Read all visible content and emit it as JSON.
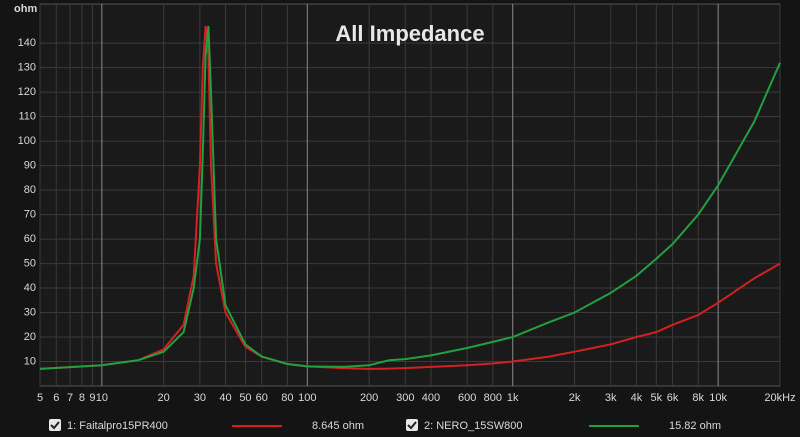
{
  "chart_data": {
    "type": "line",
    "title": "All Impedance",
    "y_label": "ohm",
    "x_scale": "log",
    "grid": true,
    "xlim": [
      5,
      20000
    ],
    "ylim": [
      0,
      156
    ],
    "xticks": [
      5,
      6,
      7,
      8,
      9,
      10,
      20,
      30,
      40,
      50,
      60,
      80,
      100,
      200,
      300,
      400,
      600,
      800,
      {
        "value": 1000,
        "label": "1k"
      },
      {
        "value": 2000,
        "label": "2k"
      },
      {
        "value": 3000,
        "label": "3k"
      },
      {
        "value": 4000,
        "label": "4k"
      },
      {
        "value": 5000,
        "label": "5k"
      },
      {
        "value": 6000,
        "label": "6k"
      },
      {
        "value": 8000,
        "label": "8k"
      },
      {
        "value": 10000,
        "label": "10k"
      },
      {
        "value": 20000,
        "label": "20kHz"
      }
    ],
    "yticks": [
      10,
      20,
      30,
      40,
      50,
      60,
      70,
      80,
      90,
      100,
      110,
      120,
      130,
      140
    ],
    "x": [
      5,
      10,
      15,
      20,
      25,
      28,
      30,
      31,
      32,
      33,
      34,
      36,
      40,
      50,
      60,
      80,
      100,
      150,
      200,
      250,
      300,
      400,
      600,
      800,
      1000,
      1500,
      2000,
      3000,
      4000,
      5000,
      6000,
      8000,
      10000,
      15000,
      20000
    ],
    "series": [
      {
        "name": "1: Faitalpro15PR400",
        "color": "#d42020",
        "readout": "8.645 ohm",
        "values": [
          7,
          8.5,
          10.5,
          15,
          25,
          45,
          90,
          130,
          147,
          135,
          90,
          50,
          30,
          16,
          12,
          9,
          8,
          7.3,
          7,
          7.1,
          7.3,
          7.8,
          8.5,
          9.2,
          10,
          12,
          14,
          17,
          20,
          22,
          25,
          29,
          34,
          44,
          50
        ]
      },
      {
        "name": "2: NERO_15SW800",
        "color": "#22a040",
        "readout": "15.82 ohm",
        "values": [
          7,
          8.5,
          10.5,
          14,
          22,
          40,
          60,
          95,
          135,
          147,
          120,
          60,
          33,
          17,
          12,
          9,
          8,
          7.8,
          8.5,
          10.5,
          11,
          12.5,
          15.5,
          18,
          20,
          26,
          30,
          38,
          45,
          52,
          58,
          70,
          82,
          108,
          132
        ]
      }
    ]
  }
}
